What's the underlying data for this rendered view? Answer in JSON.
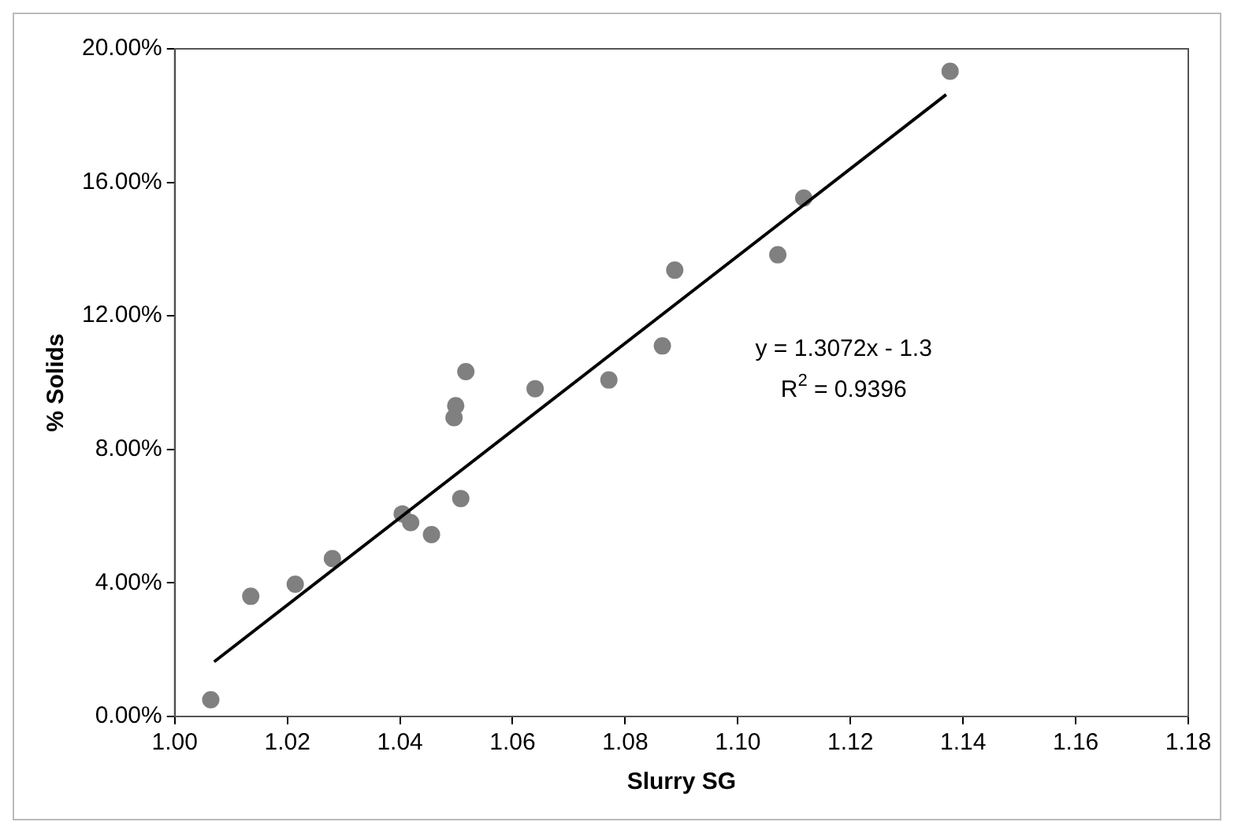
{
  "chart_data": {
    "type": "scatter",
    "xlabel": "Slurry SG",
    "ylabel": "% Solids",
    "xlim": [
      1.0,
      1.18
    ],
    "xticks": [
      {
        "value": 1.0,
        "label": "1.00"
      },
      1.02,
      1.04,
      1.06,
      1.08,
      {
        "value": 1.1,
        "label": "1.10"
      },
      1.12,
      1.14,
      1.16,
      1.18
    ],
    "ylim": [
      0,
      20
    ],
    "yticks": [
      {
        "value": 0,
        "label": "0.00%"
      },
      {
        "value": 4,
        "label": "4.00%"
      },
      {
        "value": 8,
        "label": "8.00%"
      },
      {
        "value": 12,
        "label": "12.00%"
      },
      {
        "value": 16,
        "label": "16.00%"
      },
      {
        "value": 20,
        "label": "20.00%"
      }
    ],
    "grid": false,
    "legend": false,
    "marker": "circle",
    "series": [
      {
        "color": "#808080",
        "x": [
          1.0064,
          1.0135,
          1.0214,
          1.028,
          1.0404,
          1.0419,
          1.0456,
          1.0508,
          1.0496,
          1.0499,
          1.0517,
          1.064,
          1.0771,
          1.0866,
          1.0888,
          1.1071,
          1.1117,
          1.1377
        ],
        "values": [
          0.5,
          3.6,
          3.96,
          4.73,
          6.07,
          5.81,
          5.45,
          6.53,
          8.95,
          9.31,
          10.33,
          9.82,
          10.08,
          11.1,
          13.37,
          13.83,
          15.53,
          19.33
        ]
      },
      {
        "type": "line",
        "color": "#000000",
        "marker": "none",
        "line_style": "solid",
        "x": [
          1.007,
          1.137
        ],
        "values": [
          1.64,
          18.63
        ]
      }
    ],
    "annotations": [
      "y = 1.3072x - 1.3",
      "R$^{2}$ = 0.9396"
    ]
  }
}
